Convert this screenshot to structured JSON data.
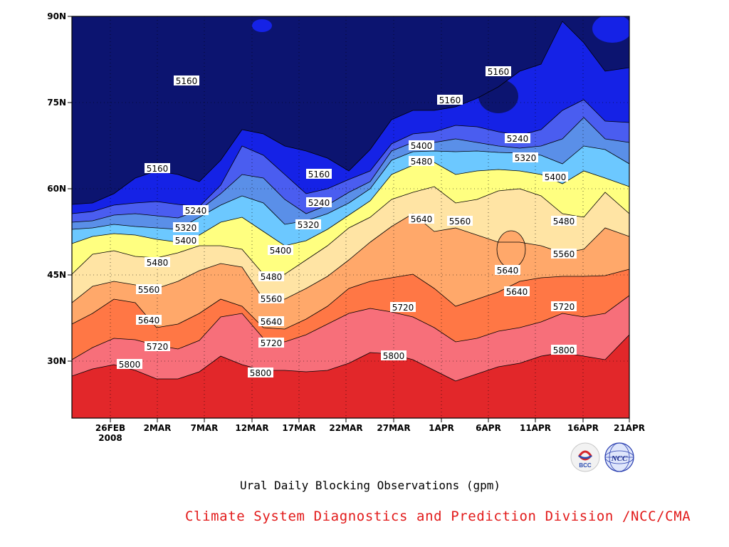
{
  "chart_data": {
    "type": "contour",
    "title": "Ural Daily Blocking Observations (gpm)",
    "x_ticks": [
      "26FEB",
      "2MAR",
      "7MAR",
      "12MAR",
      "17MAR",
      "22MAR",
      "27MAR",
      "1APR",
      "6APR",
      "11APR",
      "16APR",
      "21APR"
    ],
    "x_year_label": "2008",
    "y_ticks": [
      "30N",
      "45N",
      "60N",
      "75N",
      "90N"
    ],
    "y_range": [
      "20N",
      "90N"
    ],
    "grid": "dotted",
    "levels": [
      5160,
      5240,
      5320,
      5400,
      5480,
      5560,
      5640,
      5720,
      5800
    ],
    "band_colors": [
      "#0c1470",
      "#1522e6",
      "#4a5df0",
      "#5a8fe8",
      "#6cc8ff",
      "#ffff80",
      "#ffe4a4",
      "#ffa86a",
      "#ff7745",
      "#f76f7a",
      "#e2272a"
    ],
    "contour_labels": [
      "5160",
      "5160",
      "5160",
      "5160",
      "5160",
      "5240",
      "5240",
      "5240",
      "5320",
      "5320",
      "5320",
      "5400",
      "5400",
      "5400",
      "5400",
      "5480",
      "5480",
      "5480",
      "5480",
      "5560",
      "5560",
      "5560",
      "5560",
      "5640",
      "5640",
      "5640",
      "5640",
      "5640",
      "5720",
      "5720",
      "5720",
      "5720",
      "5800",
      "5800",
      "5800",
      "5800"
    ]
  },
  "caption": "Ural Daily Blocking Observations (gpm)",
  "credit": "Climate System Diagnostics and Prediction Division /NCC/CMA",
  "logos": {
    "bcc": "BCC",
    "ncc": "NCC"
  }
}
